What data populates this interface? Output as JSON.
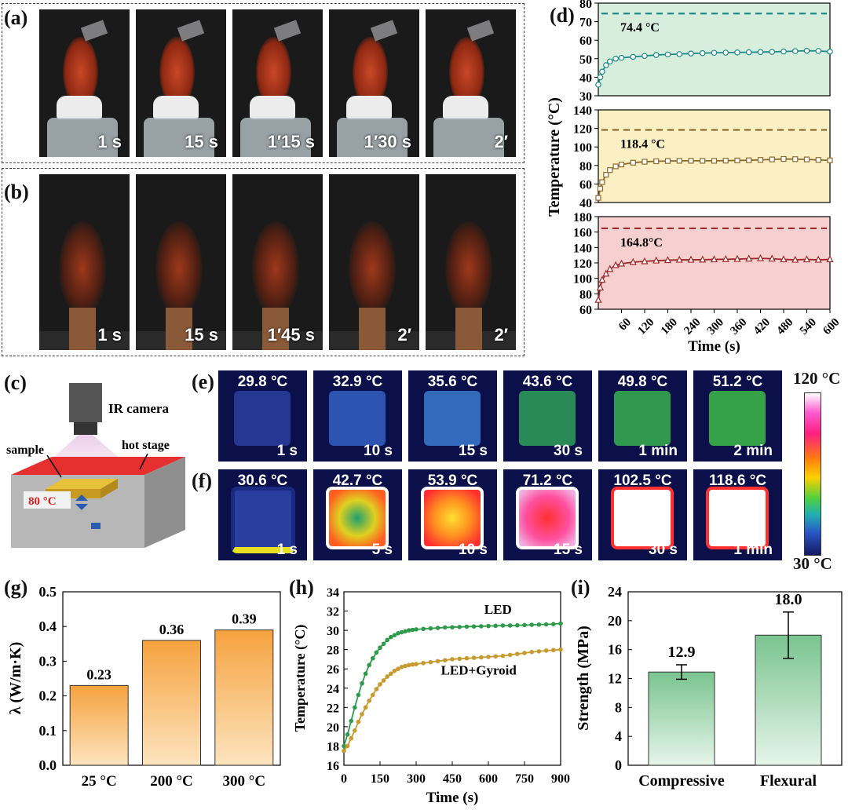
{
  "panels": {
    "a": "(a)",
    "b": "(b)",
    "c": "(c)",
    "d": "(d)",
    "e": "(e)",
    "f": "(f)",
    "g": "(g)",
    "h": "(h)",
    "i": "(i)"
  },
  "photos_a": [
    "1 s",
    "15 s",
    "1′15 s",
    "1′30 s",
    "2′"
  ],
  "photos_b": [
    "1 s",
    "15 s",
    "1′45 s",
    "2′",
    "2′"
  ],
  "schematic": {
    "camera": "IR camera",
    "sample": "sample",
    "stage": "hot stage",
    "display": "80 °C"
  },
  "thermal_e": {
    "temps": [
      "29.8 °C",
      "32.9 °C",
      "35.6 °C",
      "43.6 °C",
      "49.8 °C",
      "51.2 °C"
    ],
    "times": [
      "1 s",
      "10 s",
      "15 s",
      "30 s",
      "1 min",
      "2 min"
    ],
    "fill": [
      "#2a3ea0",
      "#3360c2",
      "#3b7ad0",
      "#2fa05a",
      "#38b050",
      "#3dbb48"
    ]
  },
  "thermal_f": {
    "temps": [
      "30.6 °C",
      "42.7 °C",
      "53.9 °C",
      "71.2 °C",
      "102.5 °C",
      "118.6 °C"
    ],
    "times": [
      "1 s",
      "5 s",
      "10 s",
      "15 s",
      "30 s",
      "1 min"
    ]
  },
  "colorbar": {
    "max": "120 °C",
    "min": "30 °C"
  },
  "colors": {
    "d_top": "#d7eedd",
    "d_mid": "#fbefc4",
    "d_bot": "#f6cfcf"
  },
  "chart_data": [
    {
      "type": "line",
      "id": "d",
      "xlabel": "Time (s)",
      "ylabel": "Temperature (°C)",
      "xticks": [
        60,
        120,
        180,
        240,
        300,
        360,
        420,
        480,
        540,
        600
      ],
      "xlim": [
        0,
        600
      ],
      "subplots": [
        {
          "ylim": [
            30,
            80
          ],
          "yticks": [
            30,
            40,
            50,
            60,
            70,
            80
          ],
          "reference": 74.4,
          "reference_label": "74.4 °C",
          "marker": "circle",
          "color": "#1e8a8c",
          "x": [
            0,
            5,
            10,
            20,
            30,
            45,
            60,
            90,
            120,
            150,
            180,
            210,
            240,
            270,
            300,
            330,
            360,
            390,
            420,
            450,
            480,
            510,
            540,
            570,
            600
          ],
          "y": [
            36,
            40,
            43,
            46.5,
            48.5,
            50,
            50.5,
            51,
            51.5,
            52,
            52.3,
            52.5,
            52.8,
            53,
            53.2,
            53.3,
            53.4,
            53.5,
            53.6,
            53.7,
            53.9,
            54.1,
            54.3,
            54.2,
            53.8
          ]
        },
        {
          "ylim": [
            40,
            140
          ],
          "yticks": [
            40,
            60,
            80,
            100,
            120,
            140
          ],
          "reference": 118.4,
          "reference_label": "118.4 °C",
          "marker": "square",
          "color": "#8c6a2c",
          "x": [
            0,
            5,
            10,
            20,
            30,
            45,
            60,
            90,
            120,
            150,
            180,
            210,
            240,
            270,
            300,
            330,
            360,
            390,
            420,
            450,
            480,
            510,
            540,
            570,
            600
          ],
          "y": [
            45,
            55,
            62,
            70,
            75,
            79,
            81,
            83,
            84,
            84.5,
            84.8,
            85,
            85,
            85,
            85,
            85.2,
            85.4,
            85.6,
            86,
            86.5,
            87,
            86.8,
            86.5,
            86,
            85.5
          ]
        },
        {
          "ylim": [
            60,
            180
          ],
          "yticks": [
            60,
            80,
            100,
            120,
            140,
            160,
            180
          ],
          "reference": 164.8,
          "reference_label": "164.8°C",
          "marker": "triangle",
          "color": "#9c2a2a",
          "x": [
            0,
            5,
            10,
            20,
            30,
            45,
            60,
            90,
            120,
            150,
            180,
            210,
            240,
            270,
            300,
            330,
            360,
            390,
            420,
            450,
            480,
            510,
            540,
            570,
            600
          ],
          "y": [
            72,
            88,
            98,
            106,
            112,
            117,
            119,
            121,
            122,
            123,
            123.5,
            124,
            124,
            124.2,
            124.5,
            124.8,
            125,
            125.5,
            126,
            125.5,
            124.5,
            124,
            124.5,
            124,
            124.5
          ]
        }
      ]
    },
    {
      "type": "bar",
      "id": "g",
      "categories": [
        "25 °C",
        "200 °C",
        "300 °C"
      ],
      "values": [
        0.23,
        0.36,
        0.39
      ],
      "value_labels": [
        "0.23",
        "0.36",
        "0.39"
      ],
      "ylabel": "λ (W/m·K)",
      "ylim": [
        0,
        0.5
      ],
      "yticks": [
        "0.0",
        "0.1",
        "0.2",
        "0.3",
        "0.4",
        "0.5"
      ]
    },
    {
      "type": "line",
      "id": "h",
      "xlabel": "Time (s)",
      "ylabel": "Temperature (°C)",
      "xlim": [
        0,
        900
      ],
      "ylim": [
        16,
        34
      ],
      "xticks": [
        0,
        150,
        300,
        450,
        600,
        750,
        900
      ],
      "yticks": [
        16,
        18,
        20,
        22,
        24,
        26,
        28,
        30,
        32,
        34
      ],
      "series": [
        {
          "name": "LED",
          "color": "#2e9a4c",
          "x": [
            0,
            15,
            30,
            45,
            60,
            75,
            90,
            105,
            120,
            135,
            150,
            165,
            180,
            195,
            210,
            225,
            240,
            255,
            270,
            285,
            300,
            330,
            360,
            390,
            420,
            450,
            480,
            510,
            540,
            570,
            600,
            630,
            660,
            690,
            720,
            750,
            780,
            810,
            840,
            870,
            900
          ],
          "y": [
            18,
            19.2,
            20.6,
            22,
            23.3,
            24.5,
            25.5,
            26.4,
            27.1,
            27.7,
            28.2,
            28.6,
            29,
            29.3,
            29.5,
            29.7,
            29.8,
            29.9,
            30,
            30.05,
            30.1,
            30.15,
            30.2,
            30.25,
            30.3,
            30.32,
            30.35,
            30.38,
            30.4,
            30.42,
            30.45,
            30.47,
            30.5,
            30.5,
            30.52,
            30.55,
            30.58,
            30.6,
            30.62,
            30.65,
            30.7
          ]
        },
        {
          "name": "LED+Gyroid",
          "color": "#c79a2e",
          "x": [
            0,
            15,
            30,
            45,
            60,
            75,
            90,
            105,
            120,
            135,
            150,
            165,
            180,
            195,
            210,
            225,
            240,
            255,
            270,
            285,
            300,
            330,
            360,
            390,
            420,
            450,
            480,
            510,
            540,
            570,
            600,
            630,
            660,
            690,
            720,
            750,
            780,
            810,
            840,
            870,
            900
          ],
          "y": [
            17.5,
            18,
            18.8,
            19.6,
            20.5,
            21.3,
            22,
            22.7,
            23.3,
            23.9,
            24.4,
            24.8,
            25.2,
            25.5,
            25.8,
            26,
            26.2,
            26.3,
            26.4,
            26.45,
            26.5,
            26.6,
            26.7,
            26.8,
            26.9,
            27,
            27.05,
            27.1,
            27.15,
            27.2,
            27.25,
            27.3,
            27.35,
            27.45,
            27.55,
            27.65,
            27.75,
            27.82,
            27.9,
            27.95,
            28
          ]
        }
      ]
    },
    {
      "type": "bar",
      "id": "i",
      "categories": [
        "Compressive",
        "Flexural"
      ],
      "values": [
        12.9,
        18.0
      ],
      "value_labels": [
        "12.9",
        "18.0"
      ],
      "errors": [
        1.0,
        3.2
      ],
      "ylabel": "Strength (MPa)",
      "ylim": [
        0,
        24
      ],
      "yticks": [
        0,
        4,
        8,
        12,
        16,
        20,
        24
      ]
    }
  ]
}
